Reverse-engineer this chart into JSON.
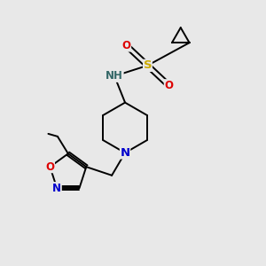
{
  "bg_color": "#e8e8e8",
  "fig_size": [
    3.0,
    3.0
  ],
  "dpi": 100,
  "atom_colors": {
    "C": "#000000",
    "N": "#0000cc",
    "O": "#dd0000",
    "S": "#ccaa00",
    "H": "#336666"
  },
  "bond_color": "#000000",
  "bond_width": 1.4,
  "font_size_atom": 8.5
}
